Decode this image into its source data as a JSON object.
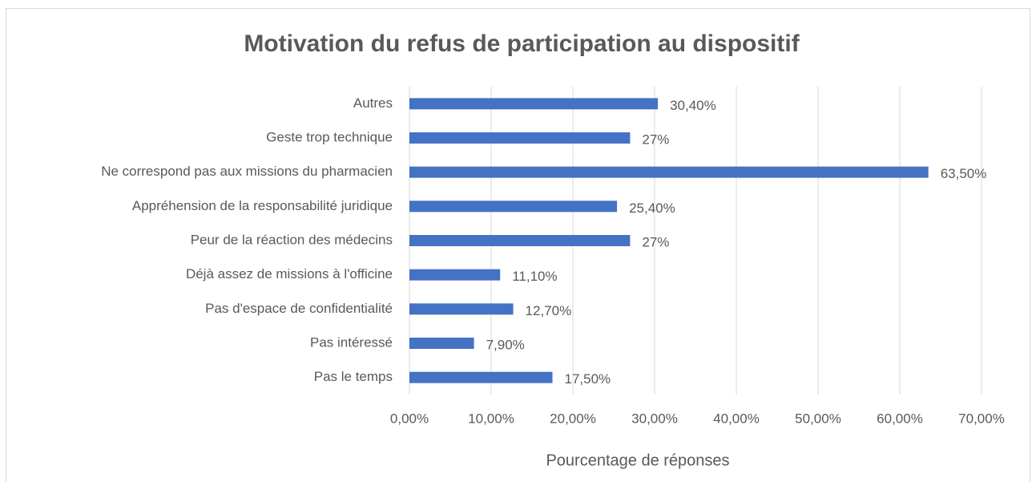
{
  "chart_data": {
    "type": "hbar",
    "title": "Motivation du refus de participation au dispositif",
    "x_label": "Pourcentage de réponses",
    "categories": [
      "Autres",
      "Geste trop technique",
      "Ne correspond pas aux missions du pharmacien",
      "Appréhension de la responsabilité juridique",
      "Peur de la réaction des médecins",
      "Déjà assez de missions à l'officine",
      "Pas d'espace de confidentialité",
      "Pas intéressé",
      "Pas le temps"
    ],
    "values": [
      30.4,
      27,
      63.5,
      25.4,
      27,
      11.1,
      12.7,
      7.9,
      17.5
    ],
    "value_labels": [
      "30,40%",
      "27%",
      "63,50%",
      "25,40%",
      "27%",
      "11,10%",
      "12,70%",
      "7,90%",
      "17,50%"
    ],
    "color": "#4472c4",
    "xlim": [
      0,
      70
    ],
    "xticks": [
      {
        "value": 0,
        "label": "0,00%"
      },
      {
        "value": 10,
        "label": "10,00%"
      },
      {
        "value": 20,
        "label": "20,00%"
      },
      {
        "value": 30,
        "label": "30,00%"
      },
      {
        "value": 40,
        "label": "40,00%"
      },
      {
        "value": 50,
        "label": "50,00%"
      },
      {
        "value": 60,
        "label": "60,00%"
      },
      {
        "value": 70,
        "label": "70,00%"
      }
    ],
    "grid": true
  }
}
